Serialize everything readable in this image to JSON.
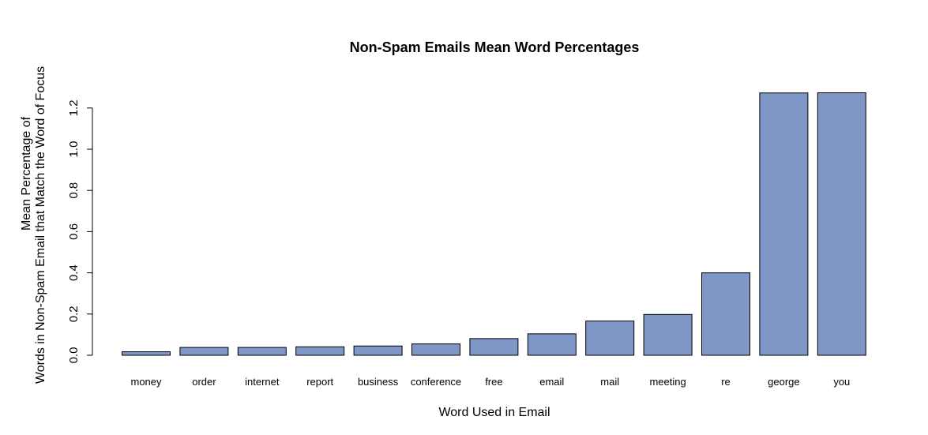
{
  "chart_data": {
    "type": "bar",
    "title": "Non-Spam Emails Mean Word Percentages",
    "xlabel": "Word Used in Email",
    "ylabel_lines": [
      "Mean Percentage of",
      "Words in Non-Spam Email that Match the Word of Focus"
    ],
    "categories": [
      "money",
      "order",
      "internet",
      "report",
      "business",
      "conference",
      "free",
      "email",
      "mail",
      "meeting",
      "re",
      "george",
      "you"
    ],
    "values": [
      0.017,
      0.038,
      0.038,
      0.041,
      0.045,
      0.055,
      0.081,
      0.104,
      0.166,
      0.198,
      0.4,
      1.273,
      1.274
    ],
    "yticks": [
      "0.0",
      "0.2",
      "0.4",
      "0.6",
      "0.8",
      "1.0",
      "1.2"
    ],
    "ylim": [
      0,
      1.2
    ],
    "bar_color": "#7f97c7",
    "grid": false
  }
}
